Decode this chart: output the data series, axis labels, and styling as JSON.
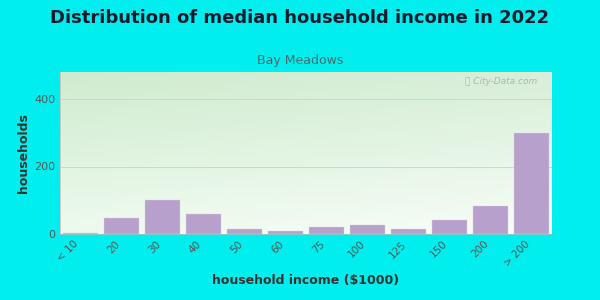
{
  "title": "Distribution of median household income in 2022",
  "subtitle": "Bay Meadows",
  "xlabel": "household income ($1000)",
  "ylabel": "households",
  "background_color": "#00EEEE",
  "plot_bg_top": "#e8f5e8",
  "plot_bg_bottom": "#f8fff8",
  "bar_color": "#b8a0cc",
  "bar_edge_color": "#e0d0e8",
  "categories": [
    "< 10",
    "20",
    "30",
    "40",
    "50",
    "60",
    "75",
    "100",
    "125",
    "150",
    "200",
    "> 200"
  ],
  "values": [
    4,
    47,
    100,
    58,
    14,
    10,
    22,
    28,
    14,
    42,
    82,
    300
  ],
  "ylim": [
    0,
    480
  ],
  "yticks": [
    0,
    200,
    400
  ],
  "grid_color": "#d0d0d0",
  "watermark": "City-Data.com",
  "title_fontsize": 13,
  "subtitle_fontsize": 9,
  "axis_label_fontsize": 9,
  "tick_fontsize": 7.5,
  "title_color": "#1a1a2e",
  "subtitle_color": "#4a6a6a",
  "axis_label_color": "#333333",
  "tick_color": "#555555"
}
